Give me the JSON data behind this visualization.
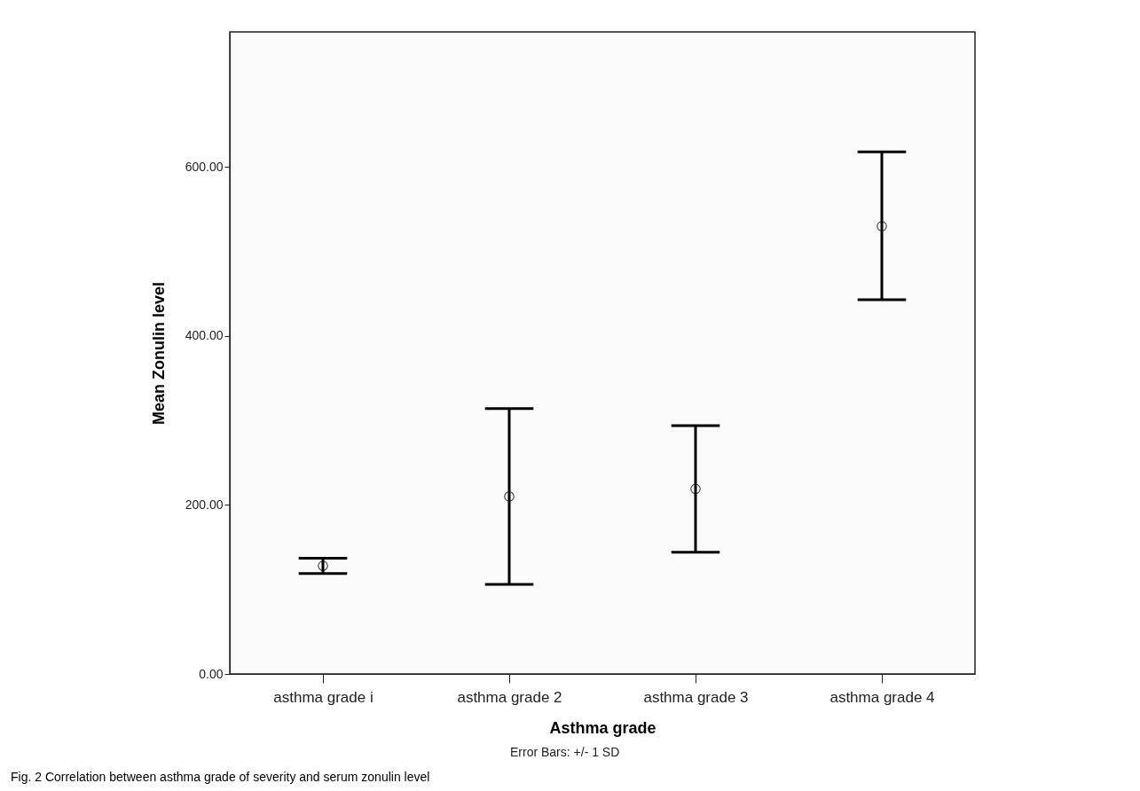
{
  "chart_data": {
    "type": "scatter",
    "xlabel": "Asthma grade",
    "ylabel": "Mean Zonulin level",
    "categories": [
      "asthma grade i",
      "asthma grade 2",
      "asthma grade 3",
      "asthma grade 4"
    ],
    "values": [
      128,
      210,
      219,
      530
    ],
    "errors": [
      [
        119,
        137
      ],
      [
        106,
        314
      ],
      [
        144,
        294
      ],
      [
        443,
        618
      ]
    ],
    "color": "#000000",
    "marker": "circle",
    "grid": false,
    "ylim": [
      0,
      760
    ],
    "yticks": [
      {
        "value": 0,
        "label": "0.00"
      },
      {
        "value": 200,
        "label": "200.00"
      },
      {
        "value": 400,
        "label": "400.00"
      },
      {
        "value": 600,
        "label": "600.00"
      }
    ],
    "annotations": [
      "Error Bars: +/- 1 SD",
      "Fig. 2 Correlation between asthma grade of severity and serum zonulin level"
    ]
  }
}
